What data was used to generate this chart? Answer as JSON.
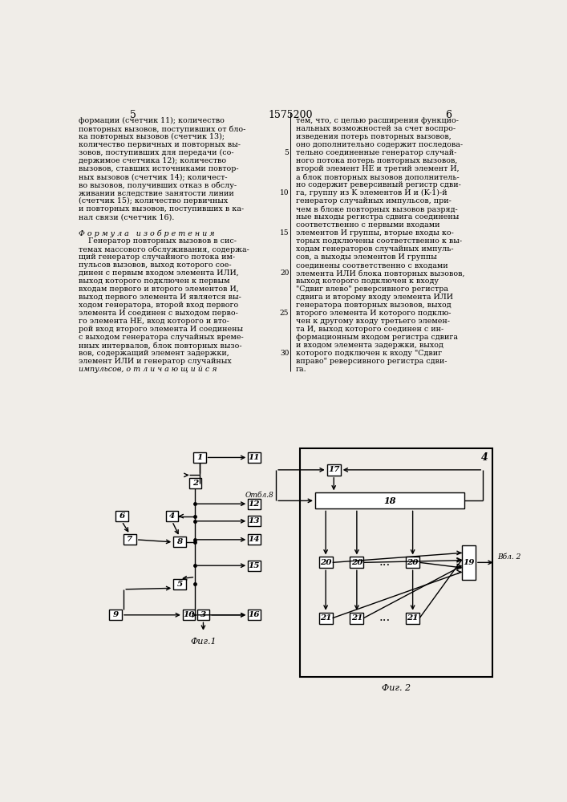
{
  "background_color": "#f0ede8",
  "page_number_left": "5",
  "patent_number": "1575200",
  "page_number_right": "6",
  "fig1_caption": "Фиг.1",
  "fig2_caption": "Фиг. 2",
  "otbl_label": "Отбл.8",
  "vbl_label": "Вбл. 2",
  "left_col_lines": [
    "формации (счетчик 11); количество",
    "повторных вызовов, поступивших от бло-",
    "ка повторных вызовов (счетчик 13);",
    "количество первичных и повторных вы-",
    "зовов, поступивших для передачи (со-",
    "держимое счетчика 12); количество",
    "вызовов, ставших источниками повтор-",
    "ных вызовов (счетчик 14); количест-",
    "во вызовов, получивших отказ в обслу-",
    "живании вследствие занятости линии",
    "(счетчик 15); количество первичных",
    "и повторных вызовов, поступивших в ка-",
    "нал связи (счетчик 16).",
    "",
    "Ф о р м у л а   и з о б р е т е н и я",
    "    Генератор повторных вызовов в сис-",
    "темах массового обслуживания, содержа-",
    "щий генератор случайного потока им-",
    "пульсов вызовов, выход которого сое-",
    "динен с первым входом элемента ИЛИ,",
    "выход которого подключен к первым",
    "входам первого и второго элементов И,",
    "выход первого элемента И является вы-",
    "ходом генератора, второй вход первого",
    "элемента И соединен с выходом перво-",
    "го элемента НЕ, вход которого и вто-",
    "рой вход второго элемента И соединены",
    "с выходом генератора случайных време-",
    "нных интервалов, блок повторных вызо-",
    "вов, содержащий элемент задержки,",
    "элемент ИЛИ и генератор случайных",
    "импульсов, о т л и ч а ю щ и й с я"
  ],
  "right_col_lines": [
    "тем, что, с целью расширения функцио-",
    "нальных возможностей за счет воспро-",
    "изведения потерь повторных вызовов,",
    "оно дополнительно содержит последова-",
    "тельно соединенные генератор случай-",
    "ного потока потерь повторных вызовов,",
    "второй элемент НЕ и третий элемент И,",
    "а блок повторных вызовов дополнитель-",
    "но содержит реверсивный регистр сдви-",
    "га, группу из K элементов И и (K-1)-й",
    "генератор случайных импульсов, при-",
    "чем в блоке повторных вызовов разряд-",
    "ные выходы регистра сдвига соединены",
    "соответственно с первыми входами",
    "элементов И группы, вторые входы ко-",
    "торых подключены соответственно к вы-",
    "ходам генераторов случайных импуль-",
    "сов, а выходы элементов И группы",
    "соединены соответственно с входами",
    "элемента ИЛИ блока повторных вызовов,",
    "выход которого подключен к входу",
    "\"Сдвиг влево\" реверсивного регистра",
    "сдвига и второму входу элемента ИЛИ",
    "генератора повторных вызовов, выход",
    "второго элемента И которого подклю-",
    "чен к другому входу третьего элемен-",
    "та И, выход которого соединен с ин-",
    "формационным входом регистра сдвига",
    "и входом элемента задержки, выход",
    "которого подключен к входу \"Сдвиг",
    "вправо\" реверсивного регистра сдви-",
    "га."
  ]
}
